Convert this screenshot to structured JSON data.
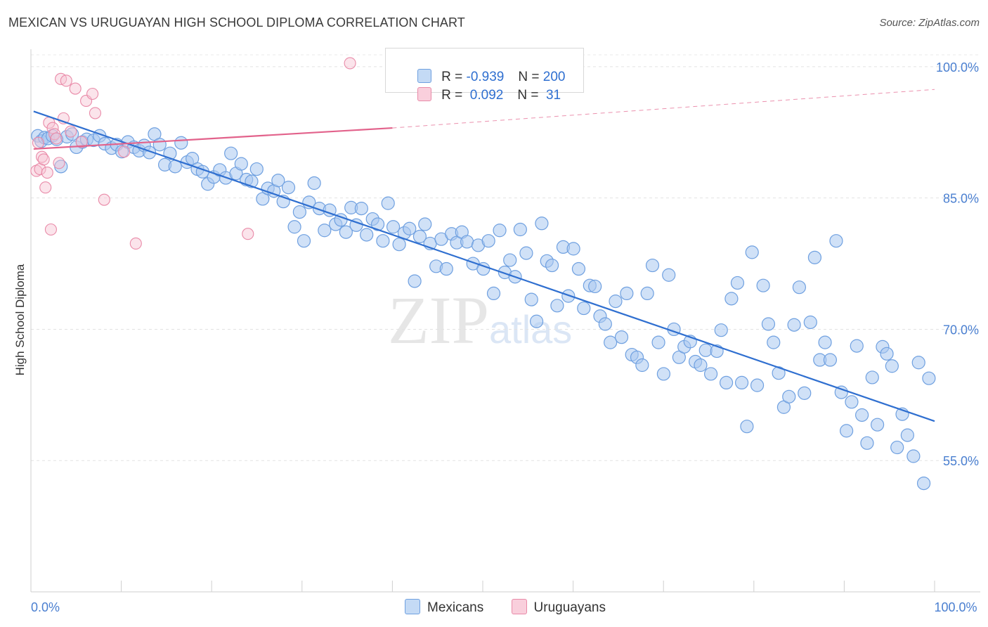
{
  "header": {
    "title": "MEXICAN VS URUGUAYAN HIGH SCHOOL DIPLOMA CORRELATION CHART",
    "source": "Source: ZipAtlas.com"
  },
  "watermark": {
    "zip": "ZIP",
    "atlas": "atlas"
  },
  "legend": {
    "rows": [
      {
        "r_label": "R = ",
        "r_value": "-0.939",
        "n_label": "N = ",
        "n_value": "200",
        "color": "#a9c8f0"
      },
      {
        "r_label": "R = ",
        "r_value": " 0.092",
        "n_label": "N = ",
        "n_value": " 31",
        "color": "#f5b6c9"
      }
    ]
  },
  "bottom_legend": {
    "mexicans": "Mexicans",
    "uruguayans": "Uruguayans"
  },
  "colors": {
    "blue_fill": "#a9c8f0",
    "blue_stroke": "#6fa0e0",
    "blue_line": "#2f6fd0",
    "pink_fill": "#f7c3d3",
    "pink_stroke": "#e98aa8",
    "pink_line": "#e2628b"
  },
  "chart_data": {
    "type": "scatter",
    "title": "MEXICAN VS URUGUAYAN HIGH SCHOOL DIPLOMA CORRELATION CHART",
    "xlabel": "",
    "ylabel": "High School Diploma",
    "xlim": [
      0,
      100
    ],
    "ylim": [
      40,
      102
    ],
    "x_tick_labels": [
      {
        "value": 0,
        "label": "0.0%"
      },
      {
        "value": 100,
        "label": "100.0%"
      }
    ],
    "y_tick_labels": [
      {
        "value": 100,
        "label": "100.0%"
      },
      {
        "value": 85,
        "label": "85.0%"
      },
      {
        "value": 70,
        "label": "70.0%"
      },
      {
        "value": 55,
        "label": "55.0%"
      }
    ],
    "grid": true,
    "series": [
      {
        "name": "Mexicans",
        "trend": {
          "x": [
            0.3,
            100
          ],
          "y": [
            94.9,
            59.5
          ]
        },
        "points": [
          [
            0.8,
            92.1
          ],
          [
            1.2,
            91.5
          ],
          [
            1.6,
            91.9
          ],
          [
            2.0,
            91.8
          ],
          [
            2.5,
            92.1
          ],
          [
            3.0,
            91.7
          ],
          [
            3.5,
            88.6
          ],
          [
            4.2,
            92.0
          ],
          [
            4.8,
            92.3
          ],
          [
            5.3,
            90.8
          ],
          [
            6.0,
            91.4
          ],
          [
            6.5,
            91.7
          ],
          [
            7.3,
            91.6
          ],
          [
            8.0,
            92.1
          ],
          [
            8.6,
            91.2
          ],
          [
            9.4,
            90.7
          ],
          [
            10.0,
            91.1
          ],
          [
            10.6,
            90.3
          ],
          [
            11.3,
            91.4
          ],
          [
            12.0,
            90.8
          ],
          [
            12.6,
            90.4
          ],
          [
            13.2,
            91.0
          ],
          [
            13.8,
            90.2
          ],
          [
            14.4,
            92.3
          ],
          [
            15.0,
            91.1
          ],
          [
            15.6,
            88.8
          ],
          [
            16.2,
            90.1
          ],
          [
            16.8,
            88.6
          ],
          [
            17.5,
            91.3
          ],
          [
            18.2,
            89.1
          ],
          [
            18.8,
            89.5
          ],
          [
            19.4,
            88.3
          ],
          [
            20.0,
            88.0
          ],
          [
            20.6,
            86.6
          ],
          [
            21.3,
            87.4
          ],
          [
            22.0,
            88.2
          ],
          [
            22.7,
            87.3
          ],
          [
            23.3,
            90.1
          ],
          [
            23.9,
            87.8
          ],
          [
            24.5,
            88.9
          ],
          [
            25.1,
            87.1
          ],
          [
            25.7,
            86.9
          ],
          [
            26.3,
            88.3
          ],
          [
            27.0,
            84.9
          ],
          [
            27.6,
            86.1
          ],
          [
            28.3,
            85.8
          ],
          [
            28.8,
            87.0
          ],
          [
            29.4,
            84.6
          ],
          [
            30.0,
            86.2
          ],
          [
            30.7,
            81.7
          ],
          [
            31.3,
            83.4
          ],
          [
            31.8,
            80.1
          ],
          [
            32.4,
            84.5
          ],
          [
            33.0,
            86.7
          ],
          [
            33.6,
            83.8
          ],
          [
            34.2,
            81.3
          ],
          [
            34.8,
            83.6
          ],
          [
            35.5,
            82.0
          ],
          [
            36.1,
            82.5
          ],
          [
            36.7,
            81.1
          ],
          [
            37.3,
            83.9
          ],
          [
            37.9,
            81.9
          ],
          [
            38.5,
            83.8
          ],
          [
            39.1,
            80.8
          ],
          [
            39.8,
            82.6
          ],
          [
            40.4,
            82.0
          ],
          [
            41.0,
            80.1
          ],
          [
            41.6,
            84.4
          ],
          [
            42.2,
            81.7
          ],
          [
            42.9,
            79.7
          ],
          [
            43.5,
            81.0
          ],
          [
            44.1,
            81.5
          ],
          [
            44.7,
            75.5
          ],
          [
            45.3,
            80.6
          ],
          [
            45.9,
            82.0
          ],
          [
            46.5,
            79.8
          ],
          [
            47.2,
            77.2
          ],
          [
            47.8,
            80.3
          ],
          [
            48.4,
            76.9
          ],
          [
            49.0,
            80.9
          ],
          [
            49.6,
            79.9
          ],
          [
            50.2,
            81.1
          ],
          [
            50.8,
            80.0
          ],
          [
            51.5,
            77.5
          ],
          [
            52.1,
            79.6
          ],
          [
            52.7,
            76.9
          ],
          [
            53.3,
            80.1
          ],
          [
            53.9,
            74.1
          ],
          [
            54.6,
            81.3
          ],
          [
            55.2,
            76.5
          ],
          [
            55.8,
            77.9
          ],
          [
            56.4,
            76.0
          ],
          [
            57.0,
            81.4
          ],
          [
            57.7,
            78.7
          ],
          [
            58.3,
            73.4
          ],
          [
            58.9,
            70.9
          ],
          [
            59.5,
            82.1
          ],
          [
            60.1,
            77.8
          ],
          [
            60.7,
            77.3
          ],
          [
            61.3,
            72.7
          ],
          [
            62.0,
            79.4
          ],
          [
            62.6,
            73.8
          ],
          [
            63.2,
            79.2
          ],
          [
            63.8,
            76.9
          ],
          [
            64.4,
            72.4
          ],
          [
            65.1,
            75.0
          ],
          [
            65.7,
            74.9
          ],
          [
            66.3,
            71.5
          ],
          [
            66.9,
            70.6
          ],
          [
            67.5,
            68.5
          ],
          [
            68.1,
            73.2
          ],
          [
            68.8,
            69.1
          ],
          [
            69.4,
            74.1
          ],
          [
            70.0,
            67.1
          ],
          [
            70.6,
            66.8
          ],
          [
            71.2,
            65.9
          ],
          [
            71.8,
            74.1
          ],
          [
            72.4,
            77.3
          ],
          [
            73.1,
            68.5
          ],
          [
            73.7,
            64.9
          ],
          [
            74.3,
            76.2
          ],
          [
            74.9,
            70.0
          ],
          [
            75.5,
            66.8
          ],
          [
            76.1,
            68.0
          ],
          [
            76.8,
            68.6
          ],
          [
            77.4,
            66.3
          ],
          [
            78.0,
            65.9
          ],
          [
            78.6,
            67.6
          ],
          [
            79.2,
            64.9
          ],
          [
            79.9,
            67.5
          ],
          [
            80.4,
            69.9
          ],
          [
            81.0,
            63.9
          ],
          [
            81.6,
            73.5
          ],
          [
            82.3,
            75.3
          ],
          [
            82.8,
            63.9
          ],
          [
            83.4,
            58.9
          ],
          [
            84.0,
            78.8
          ],
          [
            84.6,
            63.6
          ],
          [
            85.3,
            75.0
          ],
          [
            85.9,
            70.6
          ],
          [
            86.5,
            68.5
          ],
          [
            87.1,
            65.0
          ],
          [
            87.7,
            61.1
          ],
          [
            88.3,
            62.3
          ],
          [
            88.9,
            70.5
          ],
          [
            89.5,
            74.8
          ],
          [
            90.1,
            62.7
          ],
          [
            90.8,
            70.8
          ],
          [
            91.3,
            78.2
          ],
          [
            91.9,
            66.5
          ],
          [
            92.5,
            68.5
          ],
          [
            93.1,
            66.5
          ],
          [
            93.8,
            80.1
          ],
          [
            94.4,
            62.8
          ],
          [
            95.0,
            58.4
          ],
          [
            95.6,
            61.7
          ],
          [
            96.2,
            68.1
          ],
          [
            96.8,
            60.2
          ],
          [
            97.4,
            57.0
          ],
          [
            98.0,
            64.5
          ],
          [
            98.6,
            59.1
          ],
          [
            99.2,
            68.0
          ],
          [
            99.7,
            67.2
          ],
          [
            100.3,
            65.8
          ],
          [
            100.9,
            56.5
          ],
          [
            101.5,
            60.3
          ],
          [
            102.1,
            57.9
          ],
          [
            102.8,
            55.5
          ],
          [
            103.4,
            66.2
          ],
          [
            104.0,
            52.4
          ],
          [
            104.6,
            64.4
          ]
        ],
        "points_note": ""
      },
      {
        "name": "Uruguayans",
        "trend": {
          "x": [
            0.3,
            40.0
          ],
          "y": [
            90.6,
            93.0
          ]
        },
        "trend_dashed": {
          "x": [
            40.0,
            100
          ],
          "y": [
            93.0,
            97.4
          ]
        },
        "points": [
          [
            0.3,
            88.1
          ],
          [
            0.5,
            91.3
          ],
          [
            0.7,
            88.3
          ],
          [
            0.9,
            89.7
          ],
          [
            1.1,
            89.4
          ],
          [
            1.3,
            86.2
          ],
          [
            1.5,
            87.9
          ],
          [
            1.7,
            93.6
          ],
          [
            1.9,
            81.4
          ],
          [
            2.1,
            93.0
          ],
          [
            2.3,
            92.3
          ],
          [
            2.5,
            91.8
          ],
          [
            2.8,
            89.0
          ],
          [
            3.0,
            98.6
          ],
          [
            3.3,
            94.1
          ],
          [
            3.6,
            98.4
          ],
          [
            4.1,
            92.6
          ],
          [
            4.6,
            97.5
          ],
          [
            5.3,
            91.4
          ],
          [
            5.8,
            96.1
          ],
          [
            6.5,
            96.9
          ],
          [
            6.8,
            94.7
          ],
          [
            7.8,
            84.8
          ],
          [
            10.0,
            90.3
          ],
          [
            11.3,
            79.8
          ],
          [
            23.7,
            80.9
          ],
          [
            35.0,
            100.4
          ]
        ]
      }
    ]
  }
}
